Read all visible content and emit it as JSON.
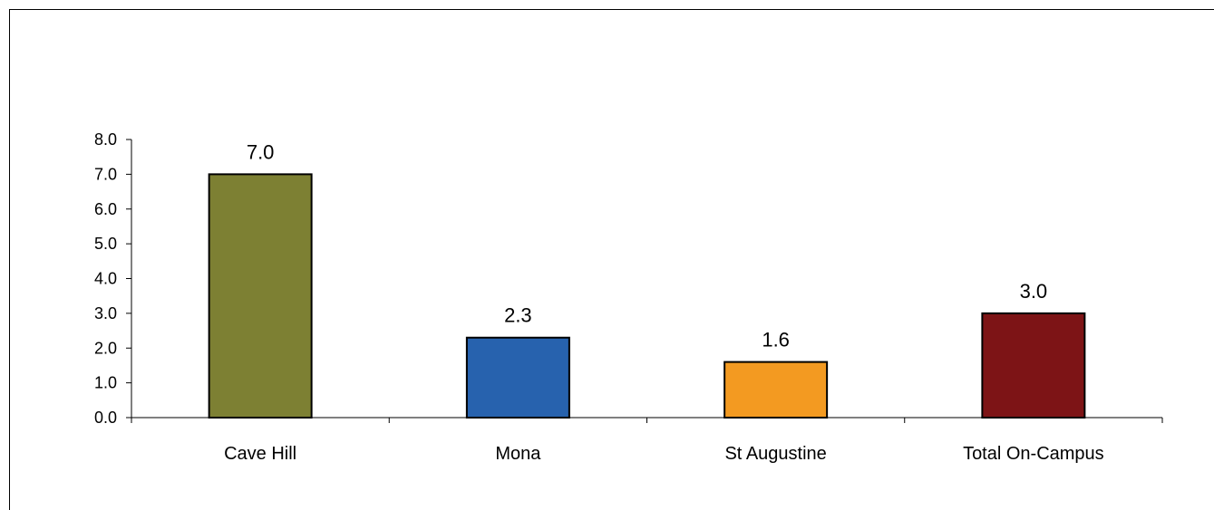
{
  "chart_data": {
    "type": "bar",
    "categories": [
      "Cave Hill",
      "Mona",
      "St Augustine",
      "Total On-Campus"
    ],
    "values": [
      7.0,
      2.3,
      1.6,
      3.0
    ],
    "value_labels": [
      "7.0",
      "2.3",
      "1.6",
      "3.0"
    ],
    "colors": [
      "#7d8033",
      "#2762ae",
      "#f39a21",
      "#7d1416"
    ],
    "yticks": [
      "0.0",
      "1.0",
      "2.0",
      "3.0",
      "4.0",
      "5.0",
      "6.0",
      "7.0",
      "8.0"
    ],
    "ylim": [
      0,
      8
    ],
    "grid": false,
    "title": "",
    "xlabel": "",
    "ylabel": ""
  }
}
